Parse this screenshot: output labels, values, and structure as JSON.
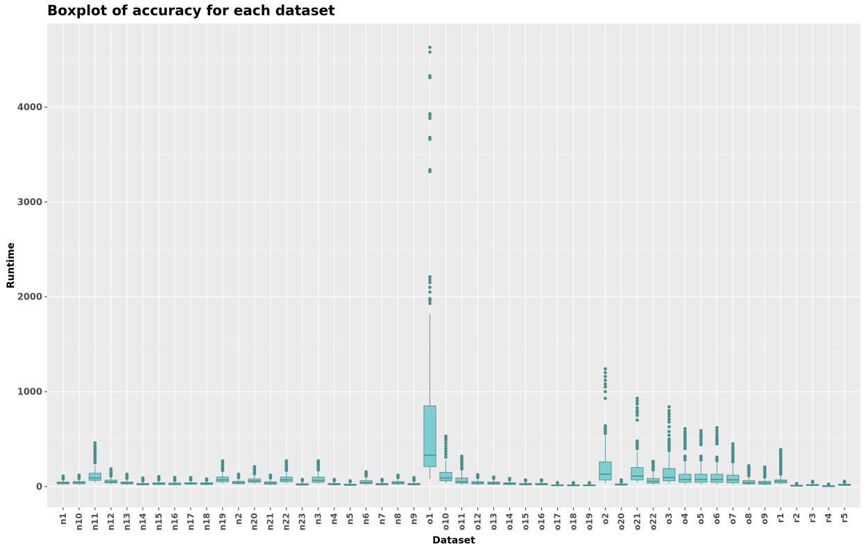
{
  "chart_data": {
    "type": "boxplot",
    "title": "Boxplot of accuracy for each dataset",
    "xlabel": "Dataset",
    "ylabel": "Runtime",
    "ylim": [
      -220,
      4880
    ],
    "yticks": [
      0,
      1000,
      2000,
      3000,
      4000
    ],
    "grid": true,
    "legend": "none",
    "colors": {
      "panel": "#ebebeb",
      "grid_major": "#ffffff",
      "box_fill": "#7fcdd0",
      "box_line": "#4a8f8f",
      "point": "#4a8f8f",
      "label": "#4d4d4d"
    },
    "categories": [
      "n1",
      "n10",
      "n11",
      "n12",
      "n13",
      "n14",
      "n15",
      "n16",
      "n17",
      "n18",
      "n19",
      "n2",
      "n20",
      "n21",
      "n22",
      "n23",
      "n3",
      "n4",
      "n5",
      "n6",
      "n7",
      "n8",
      "n9",
      "o1",
      "o10",
      "o11",
      "o12",
      "o13",
      "o14",
      "o15",
      "o16",
      "o17",
      "o18",
      "o19",
      "o2",
      "o20",
      "o21",
      "o22",
      "o3",
      "o4",
      "o5",
      "o6",
      "o7",
      "o8",
      "o9",
      "r1",
      "r2",
      "r3",
      "r4",
      "r5"
    ],
    "boxes": [
      {
        "q1": 28,
        "med": 38,
        "q3": 48,
        "lo": 18,
        "hi": 65,
        "out": [
          80,
          95,
          110
        ]
      },
      {
        "q1": 30,
        "med": 40,
        "q3": 52,
        "lo": 18,
        "hi": 70,
        "out": [
          85,
          100,
          120
        ]
      },
      {
        "q1": 65,
        "med": 90,
        "q3": 140,
        "lo": 40,
        "hi": 220,
        "out": [
          250,
          270,
          290,
          310,
          330,
          350,
          370,
          390,
          410,
          430,
          460
        ]
      },
      {
        "q1": 38,
        "med": 50,
        "q3": 68,
        "lo": 22,
        "hi": 100,
        "out": [
          110,
          125,
          140,
          160,
          185
        ]
      },
      {
        "q1": 28,
        "med": 37,
        "q3": 48,
        "lo": 15,
        "hi": 70,
        "out": [
          85,
          100,
          115,
          130
        ]
      },
      {
        "q1": 18,
        "med": 25,
        "q3": 33,
        "lo": 10,
        "hi": 48,
        "out": [
          60,
          75,
          90
        ]
      },
      {
        "q1": 22,
        "med": 30,
        "q3": 40,
        "lo": 12,
        "hi": 58,
        "out": [
          70,
          85,
          105
        ]
      },
      {
        "q1": 20,
        "med": 28,
        "q3": 37,
        "lo": 10,
        "hi": 52,
        "out": [
          65,
          80,
          95
        ]
      },
      {
        "q1": 25,
        "med": 32,
        "q3": 40,
        "lo": 15,
        "hi": 55,
        "out": [
          70,
          85,
          95
        ]
      },
      {
        "q1": 22,
        "med": 30,
        "q3": 40,
        "lo": 12,
        "hi": 55,
        "out": [
          65,
          80
        ]
      },
      {
        "q1": 50,
        "med": 70,
        "q3": 100,
        "lo": 30,
        "hi": 150,
        "out": [
          170,
          190,
          210,
          230,
          250,
          270
        ]
      },
      {
        "q1": 30,
        "med": 40,
        "q3": 55,
        "lo": 18,
        "hi": 80,
        "out": [
          95,
          110,
          130
        ]
      },
      {
        "q1": 45,
        "med": 60,
        "q3": 80,
        "lo": 25,
        "hi": 120,
        "out": [
          135,
          150,
          170,
          190,
          210
        ]
      },
      {
        "q1": 25,
        "med": 35,
        "q3": 50,
        "lo": 15,
        "hi": 75,
        "out": [
          90,
          105,
          120
        ]
      },
      {
        "q1": 50,
        "med": 70,
        "q3": 100,
        "lo": 30,
        "hi": 150,
        "out": [
          170,
          190,
          210,
          230,
          250,
          270
        ]
      },
      {
        "q1": 15,
        "med": 22,
        "q3": 30,
        "lo": 8,
        "hi": 45,
        "out": [
          60,
          75
        ]
      },
      {
        "q1": 45,
        "med": 65,
        "q3": 100,
        "lo": 25,
        "hi": 160,
        "out": [
          175,
          195,
          215,
          235,
          255,
          270
        ]
      },
      {
        "q1": 18,
        "med": 25,
        "q3": 33,
        "lo": 10,
        "hi": 48,
        "out": [
          60,
          75
        ]
      },
      {
        "q1": 12,
        "med": 18,
        "q3": 25,
        "lo": 6,
        "hi": 35,
        "out": [
          50,
          60
        ]
      },
      {
        "q1": 30,
        "med": 42,
        "q3": 62,
        "lo": 15,
        "hi": 95,
        "out": [
          110,
          125,
          140,
          155
        ]
      },
      {
        "q1": 18,
        "med": 25,
        "q3": 33,
        "lo": 10,
        "hi": 48,
        "out": [
          60,
          75
        ]
      },
      {
        "q1": 28,
        "med": 38,
        "q3": 52,
        "lo": 15,
        "hi": 78,
        "out": [
          95,
          110,
          120
        ]
      },
      {
        "q1": 18,
        "med": 25,
        "q3": 33,
        "lo": 10,
        "hi": 48,
        "out": [
          65,
          80,
          95
        ]
      },
      {
        "q1": 210,
        "med": 330,
        "q3": 850,
        "lo": 80,
        "hi": 1820,
        "out": [
          1930,
          1960,
          1980,
          2050,
          2100,
          2150,
          2180,
          2210,
          3320,
          3340,
          3660,
          3680,
          3880,
          3910,
          3930,
          4310,
          4330,
          4580,
          4630
        ]
      },
      {
        "q1": 60,
        "med": 90,
        "q3": 150,
        "lo": 35,
        "hi": 280,
        "out": [
          310,
          340,
          370,
          400,
          430,
          460,
          490,
          510,
          530
        ]
      },
      {
        "q1": 35,
        "med": 50,
        "q3": 90,
        "lo": 18,
        "hi": 170,
        "out": [
          185,
          200,
          220,
          240,
          260,
          280,
          300,
          320
        ]
      },
      {
        "q1": 28,
        "med": 38,
        "q3": 52,
        "lo": 15,
        "hi": 78,
        "out": [
          95,
          110,
          125
        ]
      },
      {
        "q1": 25,
        "med": 35,
        "q3": 48,
        "lo": 15,
        "hi": 70,
        "out": [
          85,
          100
        ]
      },
      {
        "q1": 22,
        "med": 30,
        "q3": 40,
        "lo": 12,
        "hi": 55,
        "out": [
          70,
          85
        ]
      },
      {
        "q1": 18,
        "med": 25,
        "q3": 33,
        "lo": 10,
        "hi": 48,
        "out": [
          60,
          70
        ]
      },
      {
        "q1": 18,
        "med": 25,
        "q3": 33,
        "lo": 10,
        "hi": 48,
        "out": [
          60,
          70
        ]
      },
      {
        "q1": 8,
        "med": 12,
        "q3": 18,
        "lo": 3,
        "hi": 28,
        "out": [
          35,
          42
        ]
      },
      {
        "q1": 8,
        "med": 12,
        "q3": 18,
        "lo": 3,
        "hi": 28,
        "out": [
          35,
          42
        ]
      },
      {
        "q1": 8,
        "med": 12,
        "q3": 18,
        "lo": 3,
        "hi": 28,
        "out": [
          35,
          42
        ]
      },
      {
        "q1": 70,
        "med": 130,
        "q3": 260,
        "lo": 35,
        "hi": 540,
        "out": [
          560,
          580,
          600,
          620,
          640,
          930,
          1000,
          1050,
          1080,
          1120,
          1160,
          1200,
          1240
        ]
      },
      {
        "q1": 15,
        "med": 20,
        "q3": 28,
        "lo": 8,
        "hi": 40,
        "out": [
          50,
          60,
          70
        ]
      },
      {
        "q1": 70,
        "med": 110,
        "q3": 200,
        "lo": 40,
        "hi": 370,
        "out": [
          400,
          420,
          440,
          460,
          480,
          700,
          750,
          780,
          800,
          830,
          870,
          900,
          930
        ]
      },
      {
        "q1": 35,
        "med": 55,
        "q3": 85,
        "lo": 18,
        "hi": 160,
        "out": [
          175,
          190,
          205,
          220,
          235,
          250,
          265
        ]
      },
      {
        "q1": 60,
        "med": 95,
        "q3": 190,
        "lo": 30,
        "hi": 360,
        "out": [
          380,
          400,
          420,
          440,
          460,
          480,
          500,
          540,
          580,
          630,
          680,
          710,
          740,
          770,
          800,
          840
        ]
      },
      {
        "q1": 45,
        "med": 75,
        "q3": 130,
        "lo": 20,
        "hi": 260,
        "out": [
          280,
          300,
          320,
          400,
          420,
          440,
          460,
          480,
          500,
          520,
          540,
          560,
          580,
          610
        ]
      },
      {
        "q1": 45,
        "med": 75,
        "q3": 130,
        "lo": 20,
        "hi": 260,
        "out": [
          280,
          300,
          320,
          440,
          460,
          480,
          500,
          520,
          540,
          560,
          590
        ]
      },
      {
        "q1": 45,
        "med": 75,
        "q3": 130,
        "lo": 20,
        "hi": 250,
        "out": [
          270,
          290,
          310,
          450,
          470,
          490,
          510,
          530,
          560,
          590,
          620
        ]
      },
      {
        "q1": 40,
        "med": 70,
        "q3": 120,
        "lo": 20,
        "hi": 240,
        "out": [
          260,
          280,
          300,
          320,
          340,
          360,
          380,
          400,
          420,
          450
        ]
      },
      {
        "q1": 28,
        "med": 40,
        "q3": 62,
        "lo": 12,
        "hi": 100,
        "out": [
          115,
          130,
          145,
          160,
          175,
          190,
          205,
          220
        ]
      },
      {
        "q1": 25,
        "med": 38,
        "q3": 55,
        "lo": 12,
        "hi": 90,
        "out": [
          100,
          115,
          130,
          150,
          170,
          190,
          205
        ]
      },
      {
        "q1": 38,
        "med": 55,
        "q3": 70,
        "lo": 20,
        "hi": 115,
        "out": [
          130,
          150,
          170,
          190,
          210,
          230,
          250,
          270,
          290,
          310,
          330,
          350,
          370,
          390
        ]
      },
      {
        "q1": 5,
        "med": 9,
        "q3": 14,
        "lo": 2,
        "hi": 22,
        "out": [
          28,
          32
        ]
      },
      {
        "q1": 10,
        "med": 15,
        "q3": 22,
        "lo": 4,
        "hi": 35,
        "out": [
          45,
          55
        ]
      },
      {
        "q1": 3,
        "med": 6,
        "q3": 10,
        "lo": 1,
        "hi": 16,
        "out": [
          20,
          25
        ]
      },
      {
        "q1": 12,
        "med": 18,
        "q3": 25,
        "lo": 5,
        "hi": 35,
        "out": [
          45,
          55
        ]
      }
    ]
  }
}
